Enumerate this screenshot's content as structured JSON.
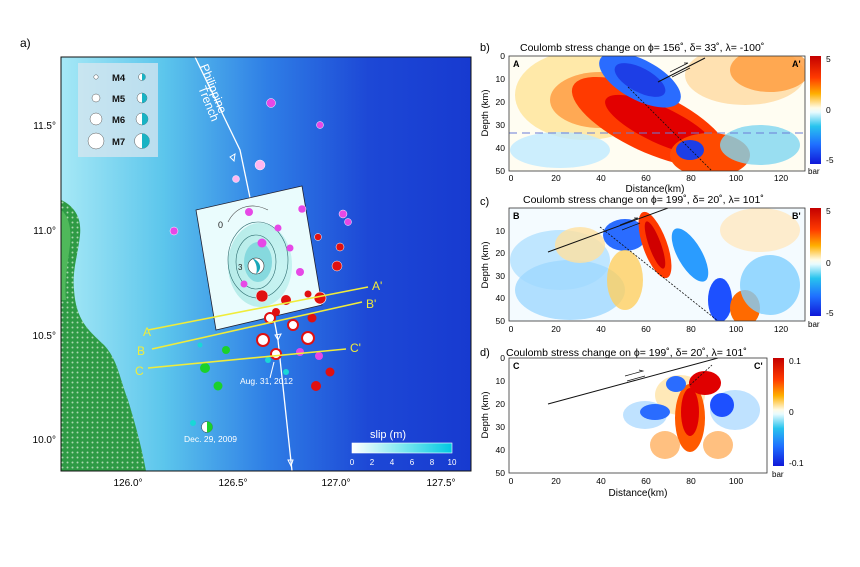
{
  "panel_a": {
    "label": "a)",
    "lat_ticks": [
      "11.5°",
      "11.0°",
      "10.5°",
      "10.0°"
    ],
    "lon_ticks": [
      "126.0°",
      "126.5°",
      "127.0°",
      "127.5°"
    ],
    "legend": [
      "M4",
      "M5",
      "M6",
      "M7"
    ],
    "trench": [
      "Philippine",
      "Trench"
    ],
    "profiles": [
      {
        "start": "A",
        "end": "A'"
      },
      {
        "start": "B",
        "end": "B'"
      },
      {
        "start": "C",
        "end": "C'"
      }
    ],
    "annotations": [
      "Aug. 31, 2012",
      "Dec. 29, 2009"
    ],
    "contours": [
      "0",
      "3"
    ],
    "slip_bar": {
      "title": "slip (m)",
      "ticks": [
        "0",
        "2",
        "4",
        "6",
        "8",
        "10"
      ]
    },
    "colors": {
      "ocean_deep": "#1a3fd8",
      "ocean_shallow": "#9fe4f4",
      "land": "#2e8b3e",
      "profile_line": "#f0ec3a"
    }
  },
  "panel_b": {
    "label": "b)",
    "title": "Coulomb stress change on ϕ= 156˚, δ= 33˚, λ= -100˚",
    "corner_left": "A",
    "corner_right": "A'",
    "ylabel": "Depth (km)",
    "xlabel": "Distance(km)",
    "xticks": [
      "0",
      "20",
      "40",
      "60",
      "80",
      "100",
      "120"
    ],
    "yticks": [
      "0",
      "10",
      "20",
      "30",
      "40",
      "50"
    ],
    "cbar": {
      "ticks": [
        "5",
        "0",
        "-5"
      ],
      "unit": "bar"
    }
  },
  "panel_c": {
    "label": "c)",
    "title": "Coulomb stress change on ϕ= 199˚, δ= 20˚, λ= 101˚",
    "corner_left": "B",
    "corner_right": "B'",
    "ylabel": "Depth (km)",
    "xticks": [
      "0",
      "20",
      "40",
      "60",
      "80",
      "100",
      "120"
    ],
    "yticks": [
      "10",
      "20",
      "30",
      "40",
      "50"
    ],
    "cbar": {
      "ticks": [
        "5",
        "0",
        "-5"
      ],
      "unit": "bar"
    }
  },
  "panel_d": {
    "label": "d)",
    "title": "Coulomb stress change on ϕ= 199˚, δ= 20˚, λ= 101˚",
    "corner_left": "C",
    "corner_right": "C'",
    "ylabel": "Depth (km)",
    "xlabel": "Distance(km)",
    "xticks": [
      "0",
      "20",
      "40",
      "60",
      "80",
      "100"
    ],
    "yticks": [
      "0",
      "10",
      "20",
      "30",
      "40",
      "50"
    ],
    "cbar": {
      "ticks": [
        "0.1",
        "0",
        "-0.1"
      ],
      "unit": "bar"
    }
  }
}
